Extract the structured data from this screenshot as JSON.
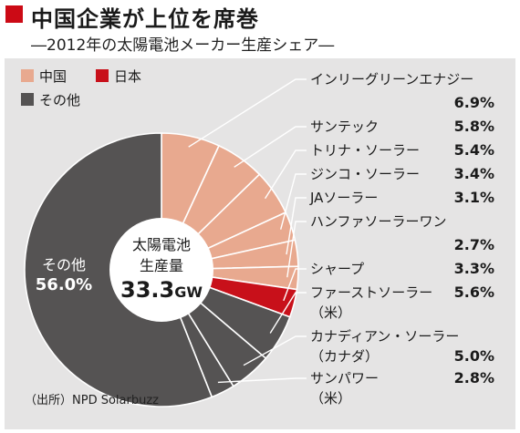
{
  "header": {
    "title": "中国企業が上位を席巻",
    "subtitle": "―2012年の太陽電池メーカー生産シェア―"
  },
  "source": "（出所）NPD Solarbuzz",
  "colors": {
    "china": "#e8a98f",
    "japan": "#c8101a",
    "other": "#555353",
    "accent": "#cc0a15"
  },
  "chart_data": {
    "type": "pie",
    "unit": "%",
    "center_label": {
      "line1": "太陽電池",
      "line2": "生産量",
      "value": "33.3",
      "unit": "GW"
    },
    "legend": [
      {
        "name": "中国",
        "group": "china"
      },
      {
        "name": "日本",
        "group": "japan"
      },
      {
        "name": "その他",
        "group": "other"
      }
    ],
    "slices": [
      {
        "label": "インリーグリーンエナジー",
        "value": 6.9,
        "group": "china"
      },
      {
        "label": "サンテック",
        "value": 5.8,
        "group": "china"
      },
      {
        "label": "トリナ・ソーラー",
        "value": 5.4,
        "group": "china"
      },
      {
        "label": "ジンコ・ソーラー",
        "value": 3.4,
        "group": "china"
      },
      {
        "label": "JAソーラー",
        "value": 3.1,
        "group": "china"
      },
      {
        "label": "ハンファソーラーワン",
        "value": 2.7,
        "group": "china"
      },
      {
        "label": "シャープ",
        "value": 3.3,
        "group": "japan"
      },
      {
        "label": "ファーストソーラー",
        "sublabel": "（米）",
        "value": 5.6,
        "group": "other"
      },
      {
        "label": "カナディアン・ソーラー",
        "sublabel": "（カナダ）",
        "value": 5.0,
        "group": "other"
      },
      {
        "label": "サンパワー",
        "sublabel": "（米）",
        "value": 2.8,
        "group": "other"
      },
      {
        "label": "その他",
        "value": 56.0,
        "group": "other"
      }
    ]
  }
}
